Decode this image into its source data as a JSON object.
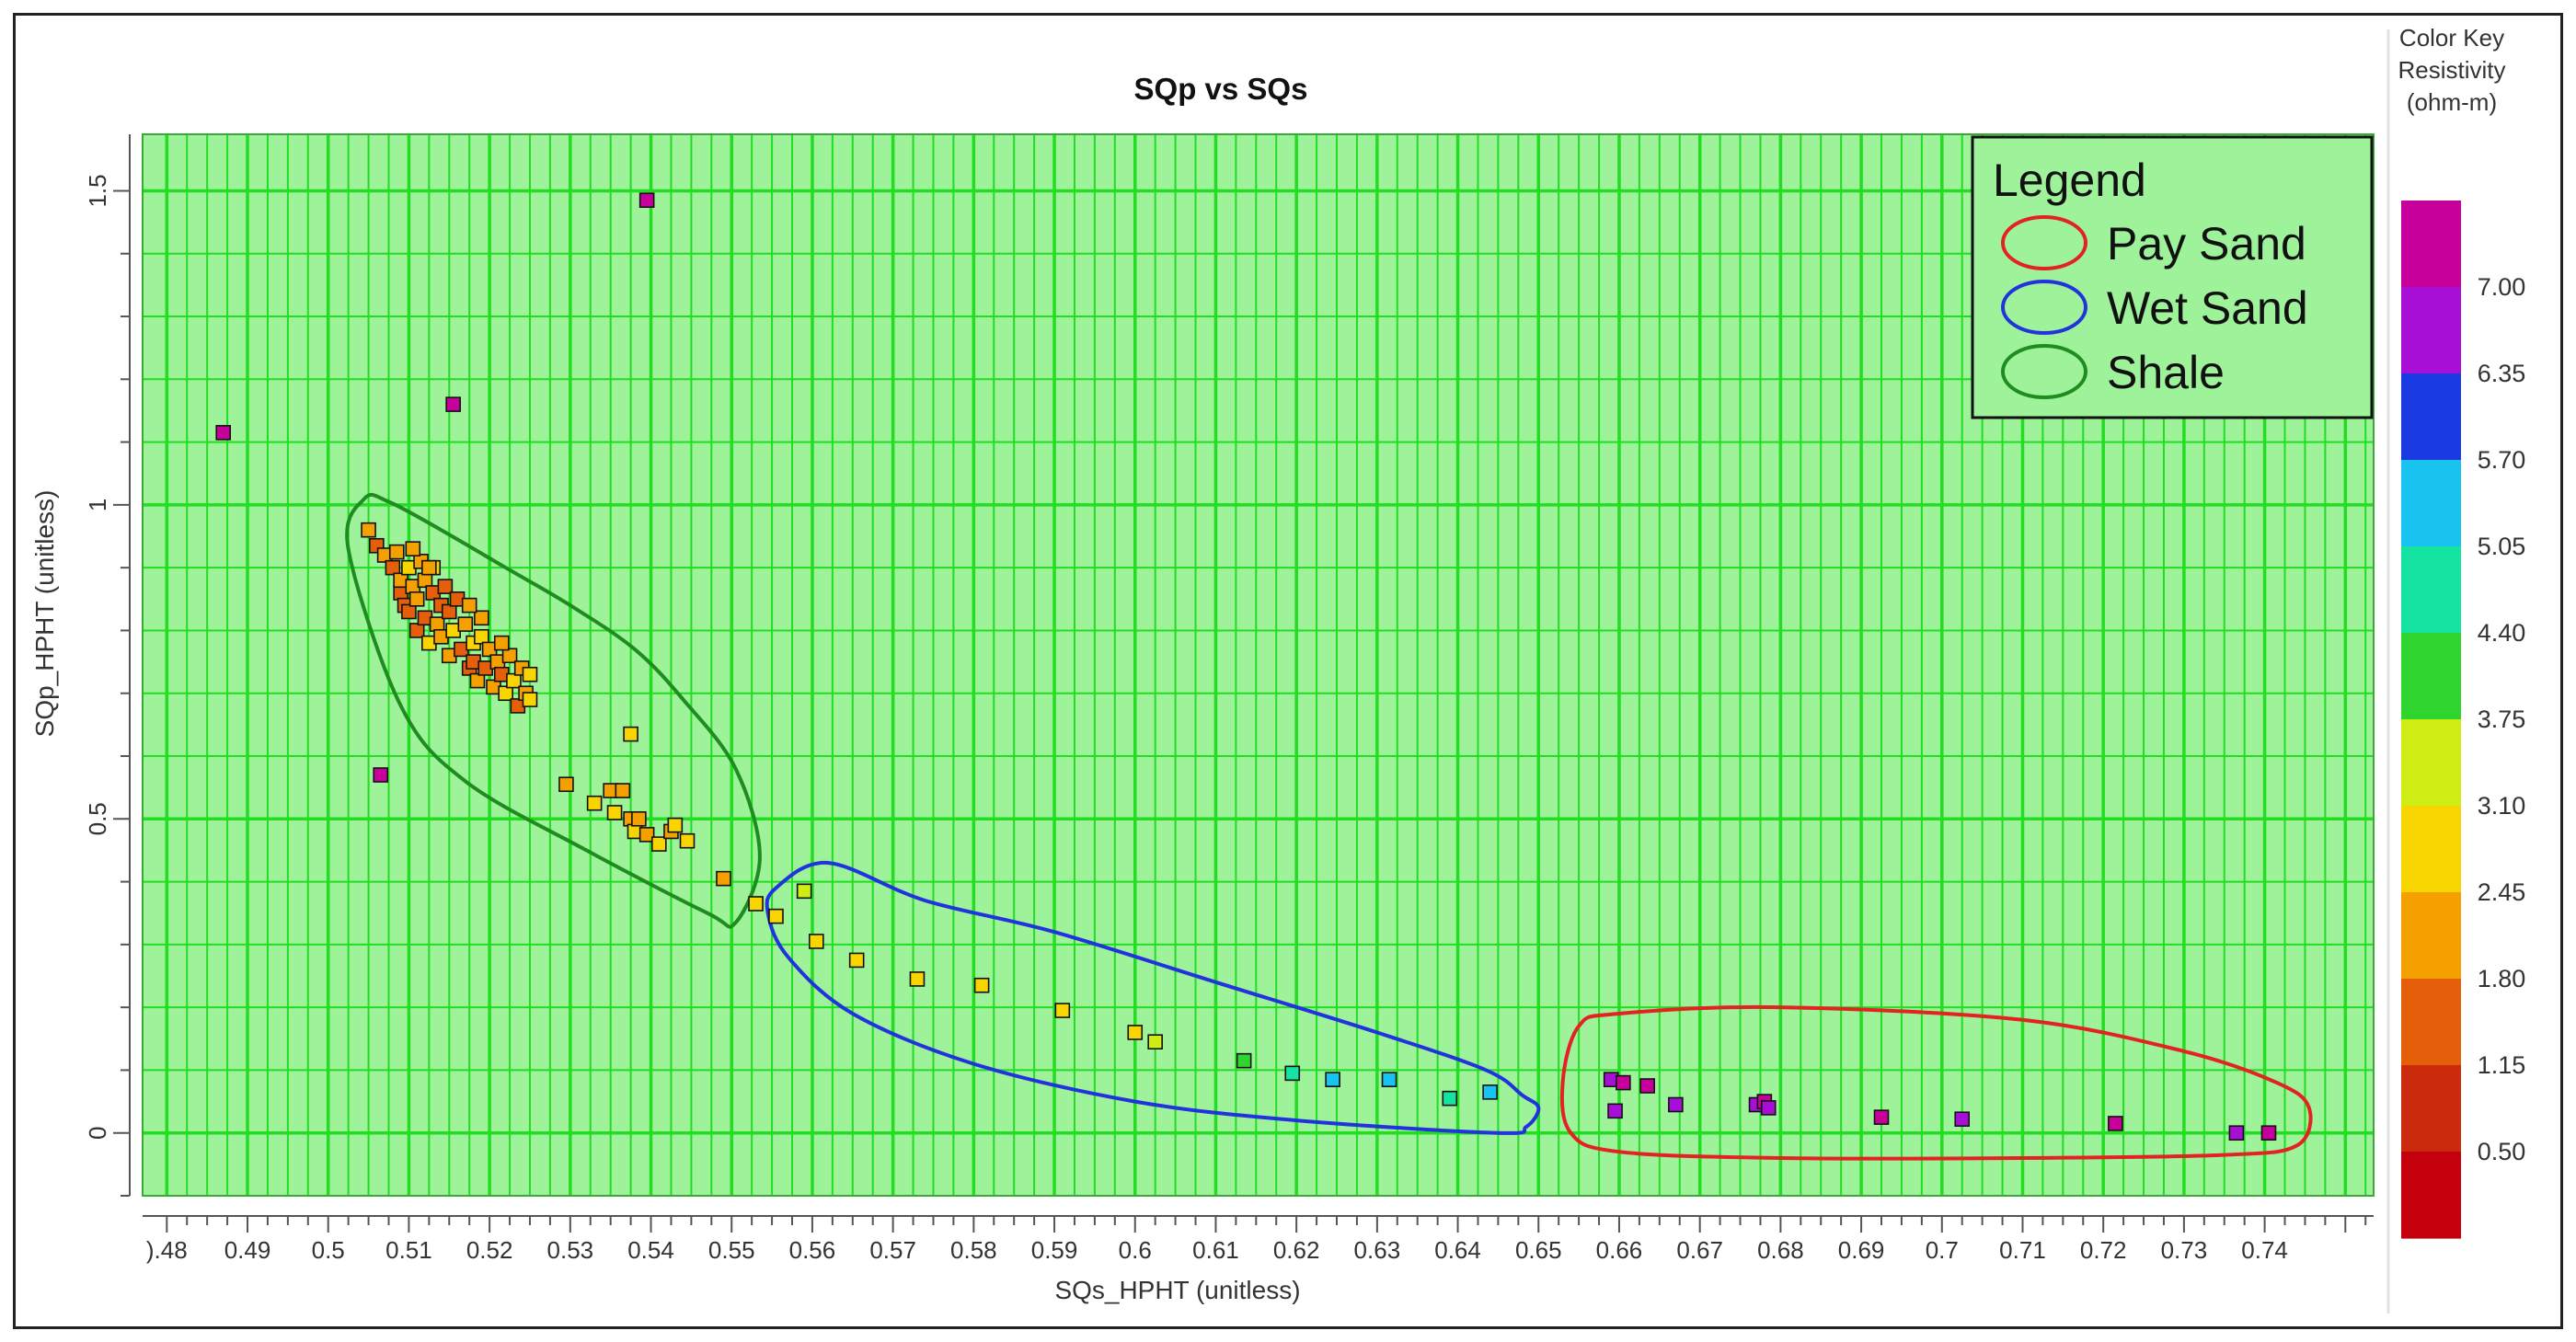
{
  "chart_data": {
    "type": "scatter",
    "title": "SQp vs SQs",
    "xlabel": "SQs_HPHT (unitless)",
    "ylabel": "SQp_HPHT (unitless)",
    "xlim": [
      0.477,
      0.7535
    ],
    "ylim": [
      -0.1,
      1.59
    ],
    "x_ticks": [
      0.48,
      0.49,
      0.5,
      0.51,
      0.52,
      0.53,
      0.54,
      0.55,
      0.56,
      0.57,
      0.58,
      0.59,
      0.6,
      0.61,
      0.62,
      0.63,
      0.64,
      0.65,
      0.66,
      0.67,
      0.68,
      0.69,
      0.7,
      0.71,
      0.72,
      0.73,
      0.74
    ],
    "x_tick_labels": [
      ").48",
      "0.49",
      "0.5",
      "0.51",
      "0.52",
      "0.53",
      "0.54",
      "0.55",
      "0.56",
      "0.57",
      "0.58",
      "0.59",
      "0.6",
      "0.61",
      "0.62",
      "0.63",
      "0.64",
      "0.65",
      "0.66",
      "0.67",
      "0.68",
      "0.69",
      "0.7",
      "0.71",
      "0.72",
      "0.73",
      "0.74"
    ],
    "y_ticks": [
      0,
      0.5,
      1,
      1.5
    ],
    "y_tick_labels": [
      "0",
      "0.5",
      "1",
      "1.5"
    ],
    "grid": true,
    "grid_color": "#22dd22",
    "background_color": "#9df29a",
    "legend": {
      "title": "Legend",
      "position": "top-right",
      "entries": [
        {
          "label": "Pay Sand",
          "color": "#e32222"
        },
        {
          "label": "Wet Sand",
          "color": "#2233dd"
        },
        {
          "label": "Shale",
          "color": "#1e8c1e"
        }
      ]
    },
    "regions": [
      {
        "name": "Shale",
        "color": "#1e8c1e",
        "points": [
          [
            0.5045,
            1.01
          ],
          [
            0.5075,
            1.005
          ],
          [
            0.514,
            0.96
          ],
          [
            0.522,
            0.9
          ],
          [
            0.53,
            0.84
          ],
          [
            0.538,
            0.77
          ],
          [
            0.544,
            0.69
          ],
          [
            0.5505,
            0.58
          ],
          [
            0.5535,
            0.44
          ],
          [
            0.5505,
            0.335
          ],
          [
            0.547,
            0.35
          ],
          [
            0.532,
            0.45
          ],
          [
            0.517,
            0.56
          ],
          [
            0.509,
            0.68
          ],
          [
            0.5025,
            0.93
          ]
        ]
      },
      {
        "name": "Wet Sand",
        "color": "#2233dd",
        "points": [
          [
            0.5555,
            0.39
          ],
          [
            0.562,
            0.43
          ],
          [
            0.574,
            0.37
          ],
          [
            0.59,
            0.32
          ],
          [
            0.61,
            0.24
          ],
          [
            0.63,
            0.16
          ],
          [
            0.6435,
            0.1
          ],
          [
            0.648,
            0.06
          ],
          [
            0.65,
            0.04
          ],
          [
            0.6485,
            0.01
          ],
          [
            0.645,
            0.0
          ],
          [
            0.62,
            0.02
          ],
          [
            0.6,
            0.05
          ],
          [
            0.58,
            0.11
          ],
          [
            0.565,
            0.19
          ],
          [
            0.557,
            0.28
          ],
          [
            0.5545,
            0.35
          ]
        ]
      },
      {
        "name": "Pay Sand",
        "color": "#e32222",
        "points": [
          [
            0.655,
            0.17
          ],
          [
            0.66,
            0.19
          ],
          [
            0.68,
            0.2
          ],
          [
            0.71,
            0.18
          ],
          [
            0.73,
            0.13
          ],
          [
            0.7415,
            0.08
          ],
          [
            0.7455,
            0.04
          ],
          [
            0.744,
            -0.02
          ],
          [
            0.735,
            -0.035
          ],
          [
            0.71,
            -0.04
          ],
          [
            0.68,
            -0.04
          ],
          [
            0.66,
            -0.03
          ],
          [
            0.654,
            0.0
          ],
          [
            0.653,
            0.08
          ]
        ]
      }
    ],
    "points": [
      [
        0.487,
        1.115,
        7.2
      ],
      [
        0.5155,
        1.16,
        7.2
      ],
      [
        0.5395,
        1.485,
        7.2
      ],
      [
        0.5065,
        0.57,
        7.2
      ],
      [
        0.505,
        0.96,
        2.4
      ],
      [
        0.506,
        0.935,
        1.6
      ],
      [
        0.507,
        0.92,
        2.0
      ],
      [
        0.508,
        0.9,
        1.3
      ],
      [
        0.5085,
        0.925,
        2.3
      ],
      [
        0.509,
        0.86,
        1.4
      ],
      [
        0.509,
        0.88,
        2.2
      ],
      [
        0.5095,
        0.84,
        1.5
      ],
      [
        0.51,
        0.9,
        2.6
      ],
      [
        0.51,
        0.83,
        1.2
      ],
      [
        0.5105,
        0.87,
        1.8
      ],
      [
        0.511,
        0.8,
        1.6
      ],
      [
        0.511,
        0.85,
        2.4
      ],
      [
        0.5115,
        0.91,
        1.9
      ],
      [
        0.512,
        0.82,
        1.3
      ],
      [
        0.512,
        0.88,
        2.1
      ],
      [
        0.5125,
        0.78,
        2.5
      ],
      [
        0.513,
        0.86,
        1.5
      ],
      [
        0.513,
        0.9,
        2.8
      ],
      [
        0.5135,
        0.81,
        1.9
      ],
      [
        0.514,
        0.84,
        1.2
      ],
      [
        0.514,
        0.79,
        2.3
      ],
      [
        0.5145,
        0.87,
        1.7
      ],
      [
        0.515,
        0.76,
        2.0
      ],
      [
        0.515,
        0.83,
        1.4
      ],
      [
        0.5155,
        0.8,
        2.6
      ],
      [
        0.516,
        0.85,
        1.6
      ],
      [
        0.5165,
        0.77,
        1.3
      ],
      [
        0.517,
        0.81,
        2.2
      ],
      [
        0.5175,
        0.74,
        1.7
      ],
      [
        0.518,
        0.78,
        2.5
      ],
      [
        0.518,
        0.75,
        1.5
      ],
      [
        0.5185,
        0.72,
        2.0
      ],
      [
        0.519,
        0.79,
        2.7
      ],
      [
        0.5195,
        0.74,
        1.3
      ],
      [
        0.52,
        0.77,
        2.4
      ],
      [
        0.5205,
        0.71,
        1.8
      ],
      [
        0.521,
        0.75,
        2.2
      ],
      [
        0.5215,
        0.73,
        1.5
      ],
      [
        0.522,
        0.7,
        2.6
      ],
      [
        0.5225,
        0.76,
        2.0
      ],
      [
        0.523,
        0.72,
        2.8
      ],
      [
        0.5235,
        0.68,
        1.7
      ],
      [
        0.524,
        0.74,
        2.3
      ],
      [
        0.5245,
        0.7,
        2.1
      ],
      [
        0.525,
        0.73,
        2.5
      ],
      [
        0.525,
        0.69,
        2.9
      ],
      [
        0.519,
        0.82,
        2.0
      ],
      [
        0.5215,
        0.78,
        1.9
      ],
      [
        0.5175,
        0.84,
        2.4
      ],
      [
        0.5105,
        0.93,
        2.2
      ],
      [
        0.5125,
        0.9,
        1.8
      ],
      [
        0.5295,
        0.555,
        2.3
      ],
      [
        0.533,
        0.525,
        2.5
      ],
      [
        0.535,
        0.545,
        2.2
      ],
      [
        0.5355,
        0.51,
        2.6
      ],
      [
        0.5365,
        0.545,
        2.4
      ],
      [
        0.5375,
        0.5,
        2.2
      ],
      [
        0.5375,
        0.635,
        2.5
      ],
      [
        0.538,
        0.48,
        2.6
      ],
      [
        0.5385,
        0.5,
        2.4
      ],
      [
        0.5395,
        0.475,
        2.3
      ],
      [
        0.541,
        0.46,
        2.5
      ],
      [
        0.5425,
        0.48,
        2.2
      ],
      [
        0.543,
        0.49,
        2.7
      ],
      [
        0.5445,
        0.465,
        2.5
      ],
      [
        0.549,
        0.405,
        2.4
      ],
      [
        0.553,
        0.365,
        2.6
      ],
      [
        0.5555,
        0.345,
        2.9
      ],
      [
        0.559,
        0.385,
        3.2
      ],
      [
        0.5605,
        0.305,
        2.6
      ],
      [
        0.5655,
        0.275,
        2.5
      ],
      [
        0.573,
        0.245,
        2.7
      ],
      [
        0.581,
        0.235,
        2.8
      ],
      [
        0.591,
        0.195,
        2.9
      ],
      [
        0.6,
        0.16,
        3.0
      ],
      [
        0.6025,
        0.145,
        3.1
      ],
      [
        0.6135,
        0.115,
        4.0
      ],
      [
        0.6195,
        0.095,
        4.8
      ],
      [
        0.6245,
        0.085,
        5.2
      ],
      [
        0.6315,
        0.085,
        5.3
      ],
      [
        0.639,
        0.055,
        4.6
      ],
      [
        0.644,
        0.065,
        5.1
      ],
      [
        0.659,
        0.085,
        6.8
      ],
      [
        0.6605,
        0.08,
        7.1
      ],
      [
        0.6595,
        0.035,
        6.7
      ],
      [
        0.6635,
        0.075,
        7.0
      ],
      [
        0.667,
        0.045,
        6.9
      ],
      [
        0.677,
        0.045,
        6.8
      ],
      [
        0.678,
        0.05,
        7.1
      ],
      [
        0.6785,
        0.04,
        6.7
      ],
      [
        0.6925,
        0.025,
        7.0
      ],
      [
        0.7025,
        0.022,
        6.9
      ],
      [
        0.7215,
        0.015,
        7.1
      ],
      [
        0.7365,
        0.0,
        6.8
      ],
      [
        0.7405,
        0.0,
        7.0
      ]
    ],
    "color_key": {
      "title_lines": [
        "Color Key",
        "Resistivity",
        "(ohm-m)"
      ],
      "labels": [
        "7.00",
        "6.35",
        "5.70",
        "5.05",
        "4.40",
        "3.75",
        "3.10",
        "2.45",
        "1.80",
        "1.15",
        "0.50"
      ],
      "colors": [
        "#c8009b",
        "#a80fd6",
        "#1a3ae4",
        "#18c4ef",
        "#14e3a2",
        "#2fd42f",
        "#cfec14",
        "#f8d400",
        "#f3a000",
        "#e55f0a",
        "#cc2a0c",
        "#c4000c"
      ]
    }
  }
}
